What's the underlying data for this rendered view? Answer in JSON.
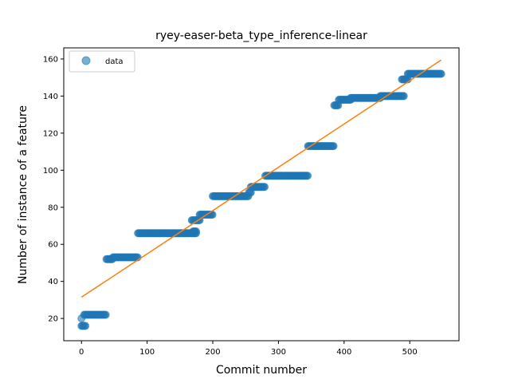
{
  "chart_data": {
    "type": "scatter",
    "title": "ryey-easer-beta_type_inference-linear",
    "xlabel": "Commit number",
    "ylabel": "Number of instance of a feature",
    "xlim": [
      -27,
      575
    ],
    "ylim": [
      8,
      166
    ],
    "xticks": [
      0,
      100,
      200,
      300,
      400,
      500
    ],
    "yticks": [
      20,
      40,
      60,
      80,
      100,
      120,
      140,
      160
    ],
    "grid": false,
    "legend": {
      "position": "top-left",
      "entries": [
        "data"
      ]
    },
    "colors": {
      "data": "#1f77b4",
      "fit": "#ff7f0e"
    },
    "steps": [
      {
        "x0": 0,
        "x1": 0,
        "y": 20
      },
      {
        "x0": 0,
        "x1": 6,
        "y": 16
      },
      {
        "x0": 4,
        "x1": 38,
        "y": 22
      },
      {
        "x0": 38,
        "x1": 48,
        "y": 52
      },
      {
        "x0": 48,
        "x1": 86,
        "y": 53
      },
      {
        "x0": 86,
        "x1": 175,
        "y": 66
      },
      {
        "x0": 170,
        "x1": 175,
        "y": 67
      },
      {
        "x0": 168,
        "x1": 180,
        "y": 73
      },
      {
        "x0": 180,
        "x1": 200,
        "y": 76
      },
      {
        "x0": 200,
        "x1": 255,
        "y": 86
      },
      {
        "x0": 255,
        "x1": 258,
        "y": 88
      },
      {
        "x0": 258,
        "x1": 280,
        "y": 91
      },
      {
        "x0": 280,
        "x1": 345,
        "y": 97
      },
      {
        "x0": 345,
        "x1": 385,
        "y": 113
      },
      {
        "x0": 385,
        "x1": 392,
        "y": 135
      },
      {
        "x0": 392,
        "x1": 410,
        "y": 138
      },
      {
        "x0": 410,
        "x1": 455,
        "y": 139
      },
      {
        "x0": 455,
        "x1": 492,
        "y": 140
      },
      {
        "x0": 488,
        "x1": 497,
        "y": 149
      },
      {
        "x0": 497,
        "x1": 548,
        "y": 152
      }
    ],
    "fit_line": {
      "x": [
        0,
        548
      ],
      "y": [
        31.5,
        159.5
      ]
    }
  }
}
